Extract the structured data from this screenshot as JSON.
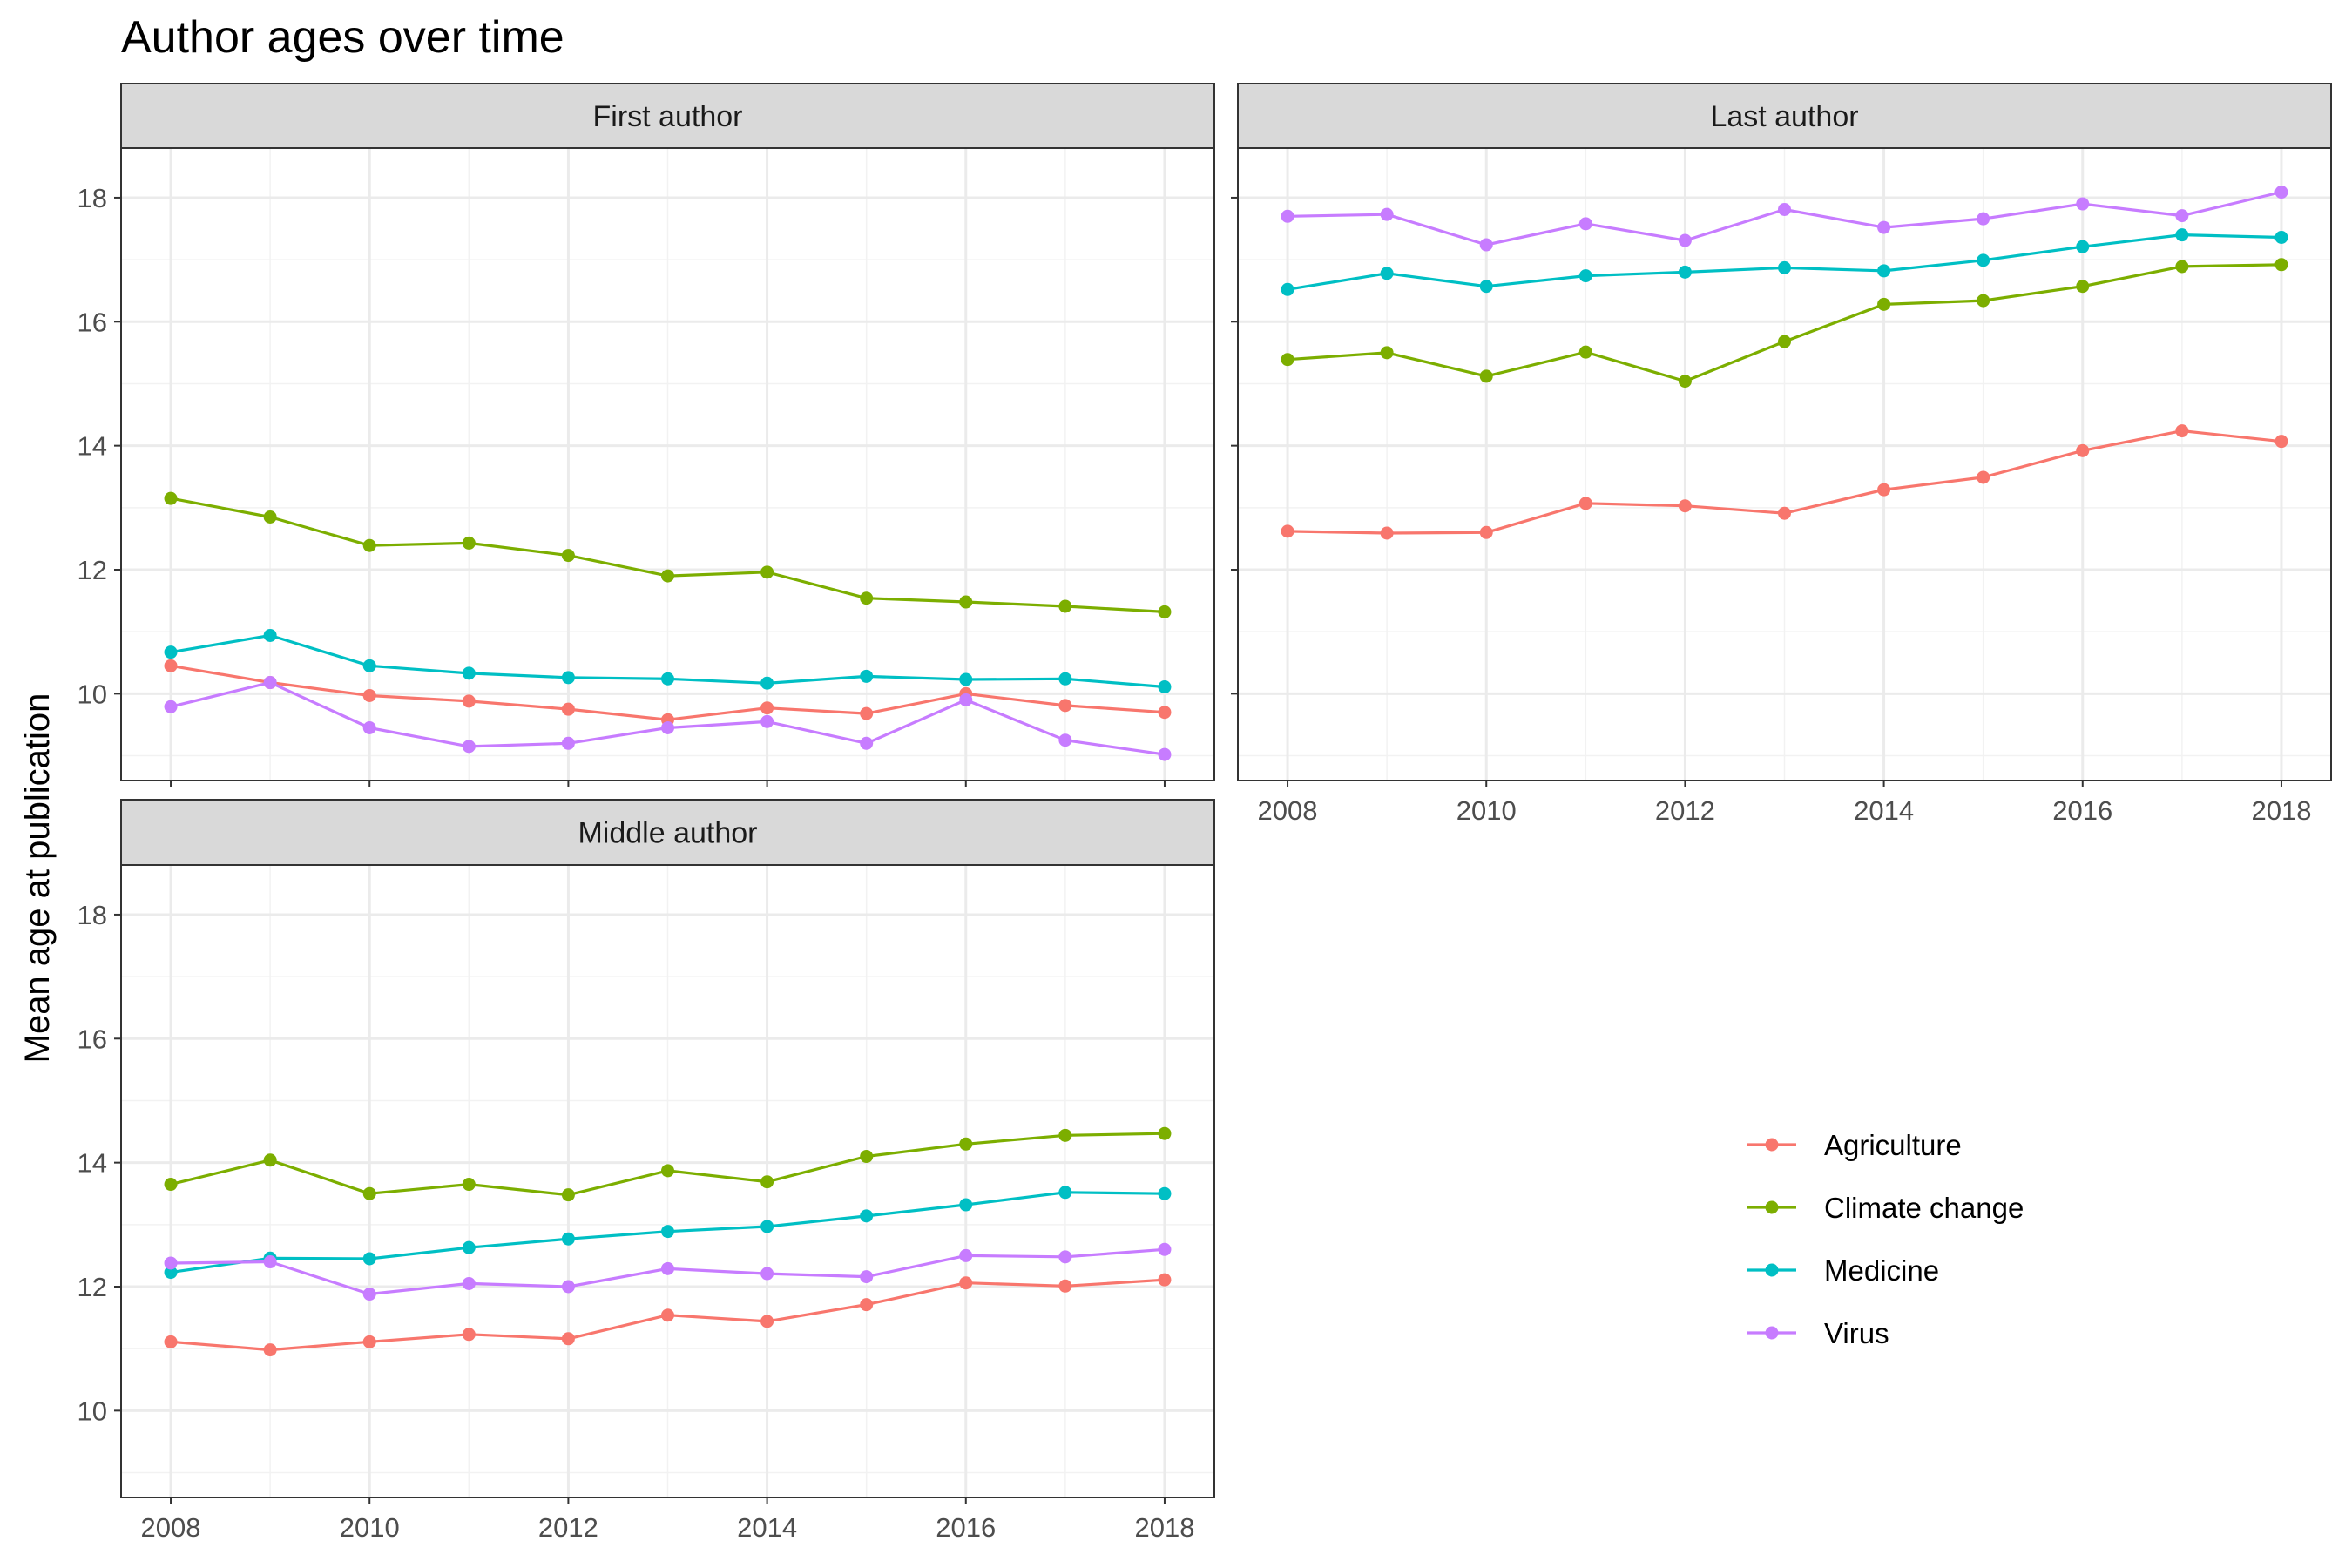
{
  "chart_data": {
    "type": "line",
    "title": "Author ages over time",
    "ylabel": "Mean age at publication",
    "xlabel": "",
    "ylim": [
      8.6,
      18.8
    ],
    "xlim": [
      2007.5,
      2018.5
    ],
    "x_ticks": [
      2008,
      2010,
      2012,
      2014,
      2016,
      2018
    ],
    "y_ticks": [
      10,
      12,
      14,
      16,
      18
    ],
    "x": [
      2008,
      2009,
      2010,
      2011,
      2012,
      2013,
      2014,
      2015,
      2016,
      2017,
      2018
    ],
    "grid": true,
    "legend_position": "right",
    "colors": {
      "Agriculture": "#F8766D",
      "Climate change": "#7CAE00",
      "Medicine": "#00BFC4",
      "Virus": "#C77CFF"
    },
    "legend": [
      "Agriculture",
      "Climate change",
      "Medicine",
      "Virus"
    ],
    "panels": [
      {
        "name": "First author",
        "series": [
          {
            "name": "Agriculture",
            "values": [
              10.45,
              10.18,
              9.97,
              9.88,
              9.75,
              9.58,
              9.77,
              9.68,
              10.0,
              9.81,
              9.7
            ]
          },
          {
            "name": "Climate change",
            "values": [
              13.15,
              12.85,
              12.39,
              12.43,
              12.23,
              11.9,
              11.96,
              11.54,
              11.48,
              11.41,
              11.32
            ]
          },
          {
            "name": "Medicine",
            "values": [
              10.67,
              10.94,
              10.45,
              10.33,
              10.26,
              10.24,
              10.17,
              10.28,
              10.23,
              10.24,
              10.11
            ]
          },
          {
            "name": "Virus",
            "values": [
              9.79,
              10.18,
              9.45,
              9.15,
              9.2,
              9.45,
              9.55,
              9.2,
              9.9,
              9.25,
              9.02
            ]
          }
        ]
      },
      {
        "name": "Last author",
        "series": [
          {
            "name": "Agriculture",
            "values": [
              12.62,
              12.59,
              12.6,
              13.07,
              13.03,
              12.91,
              13.29,
              13.49,
              13.92,
              14.24,
              14.07
            ]
          },
          {
            "name": "Climate change",
            "values": [
              15.39,
              15.5,
              15.12,
              15.51,
              15.04,
              15.68,
              16.28,
              16.34,
              16.57,
              16.89,
              16.92
            ]
          },
          {
            "name": "Medicine",
            "values": [
              16.52,
              16.78,
              16.57,
              16.74,
              16.8,
              16.87,
              16.82,
              16.99,
              17.21,
              17.4,
              17.36
            ]
          },
          {
            "name": "Virus",
            "values": [
              17.7,
              17.73,
              17.24,
              17.58,
              17.31,
              17.81,
              17.52,
              17.66,
              17.9,
              17.71,
              18.09
            ]
          }
        ]
      },
      {
        "name": "Middle author",
        "series": [
          {
            "name": "Agriculture",
            "values": [
              11.11,
              10.98,
              11.11,
              11.23,
              11.16,
              11.54,
              11.44,
              11.71,
              12.06,
              12.01,
              12.11
            ]
          },
          {
            "name": "Climate change",
            "values": [
              13.65,
              14.04,
              13.5,
              13.65,
              13.48,
              13.87,
              13.69,
              14.1,
              14.3,
              14.44,
              14.47
            ]
          },
          {
            "name": "Medicine",
            "values": [
              12.23,
              12.46,
              12.45,
              12.63,
              12.77,
              12.89,
              12.97,
              13.14,
              13.32,
              13.52,
              13.5
            ]
          },
          {
            "name": "Virus",
            "values": [
              12.38,
              12.4,
              11.88,
              12.05,
              12.0,
              12.29,
              12.21,
              12.16,
              12.5,
              12.48,
              12.6
            ]
          }
        ]
      }
    ]
  }
}
